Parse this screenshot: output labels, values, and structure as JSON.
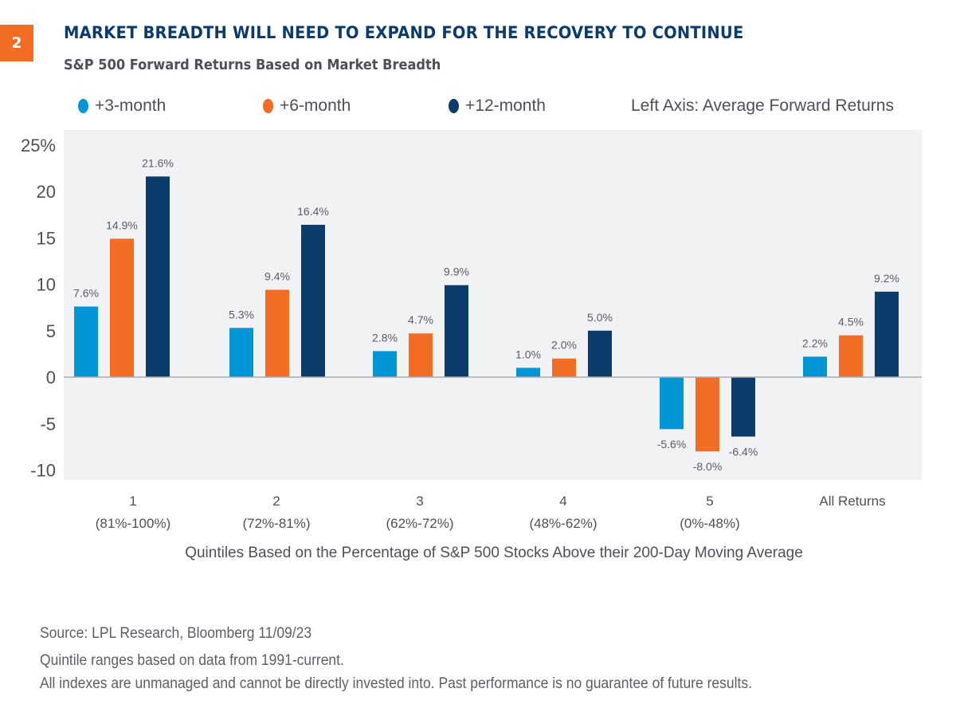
{
  "badge": "2",
  "header": {
    "title": "MARKET BREADTH WILL NEED TO EXPAND FOR THE RECOVERY TO CONTINUE",
    "subtitle": "S&P 500 Forward Returns Based on Market Breadth"
  },
  "legend": {
    "items": [
      {
        "label": "+3-month",
        "color": "#0096d6"
      },
      {
        "label": "+6-month",
        "color": "#f36c24"
      },
      {
        "label": "+12-month",
        "color": "#0c3c6b"
      }
    ],
    "note": "Left Axis: Average Forward Returns"
  },
  "chart_data": {
    "type": "bar",
    "title": "MARKET BREADTH WILL NEED TO EXPAND FOR THE RECOVERY TO CONTINUE",
    "subtitle": "S&P 500 Forward Returns Based on Market Breadth",
    "categories": [
      "1",
      "2",
      "3",
      "4",
      "5",
      "All Returns"
    ],
    "category_sublabels": [
      "(81%-100%)",
      "(72%-81%)",
      "(62%-72%)",
      "(48%-62%)",
      "(0%-48%)",
      ""
    ],
    "series": [
      {
        "name": "+3-month",
        "color": "#0096d6",
        "values": [
          7.6,
          5.3,
          2.8,
          1.0,
          -5.6,
          2.2
        ]
      },
      {
        "name": "+6-month",
        "color": "#f36c24",
        "values": [
          14.9,
          9.4,
          4.7,
          2.0,
          -8.0,
          4.5
        ]
      },
      {
        "name": "+12-month",
        "color": "#0c3c6b",
        "values": [
          21.6,
          16.4,
          9.9,
          5.0,
          -6.4,
          9.2
        ]
      }
    ],
    "data_labels": [
      [
        "7.6%",
        "5.3%",
        "2.8%",
        "1.0%",
        "-5.6%",
        "2.2%"
      ],
      [
        "14.9%",
        "9.4%",
        "4.7%",
        "2.0%",
        "-8.0%",
        "4.5%"
      ],
      [
        "21.6%",
        "16.4%",
        "9.9%",
        "5.0%",
        "-6.4%",
        "9.2%"
      ]
    ],
    "xlabel": "Quintiles Based on the Percentage of S&P 500 Stocks Above their 200-Day Moving Average",
    "ylabel": "Average Forward Returns",
    "yticks": [
      25,
      20,
      15,
      10,
      5,
      0,
      -5,
      -10
    ],
    "ytick_labels": [
      "25%",
      "20",
      "15",
      "10",
      "5",
      "0",
      "-5",
      "-10"
    ],
    "ylim": [
      -10,
      25
    ],
    "grid": false,
    "legend_position": "top"
  },
  "footer": {
    "source": "Source: LPL Research, Bloomberg  11/09/23",
    "note1": "Quintile ranges based on data from 1991-current.",
    "note2": "All indexes are unmanaged and cannot be directly invested into. Past performance is no guarantee of future results."
  }
}
